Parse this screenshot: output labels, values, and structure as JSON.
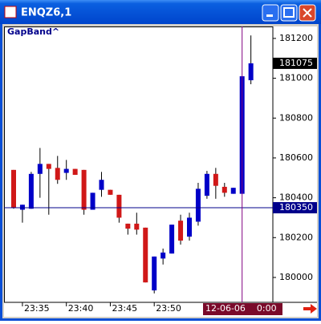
{
  "chart_data": {
    "type": "candlestick",
    "title": "ENQZ6,1",
    "indicator": "GapBand^",
    "categories": [
      null,
      "23:35",
      null,
      null,
      null,
      null,
      "23:40",
      null,
      null,
      null,
      null,
      "23:45",
      null,
      null,
      null,
      null,
      "23:50",
      null,
      null,
      null,
      null,
      null,
      null,
      null,
      null,
      null,
      null,
      null
    ],
    "series": [
      {
        "up_color": "#0000c8",
        "down_color": "#d01818",
        "open": [
          180540,
          180340,
          180345,
          180520,
          180570,
          180550,
          180525,
          180545,
          180540,
          180340,
          180440,
          180440,
          180415,
          180270,
          180270,
          180250,
          179935,
          180095,
          180120,
          180285,
          180205,
          180280,
          180410,
          180520,
          180455,
          180420,
          180420,
          180990
        ],
        "high": [
          180540,
          180365,
          180530,
          180650,
          180570,
          180610,
          180590,
          180545,
          180540,
          180425,
          180530,
          180440,
          180415,
          180270,
          180325,
          180250,
          180105,
          180145,
          180265,
          180315,
          180325,
          180475,
          180535,
          180550,
          180475,
          180450,
          181010,
          181215
        ],
        "low": [
          180345,
          180275,
          180345,
          180400,
          180315,
          180470,
          180490,
          180515,
          180315,
          180340,
          180405,
          180415,
          180275,
          180215,
          180215,
          179975,
          179920,
          180065,
          180120,
          180165,
          180185,
          180260,
          180395,
          180395,
          180405,
          180420,
          180420,
          180970
        ],
        "close": [
          180350,
          180365,
          180520,
          180570,
          180545,
          180490,
          180545,
          180515,
          180340,
          180425,
          180490,
          180415,
          180300,
          180245,
          180240,
          179975,
          180105,
          180125,
          180265,
          180185,
          180300,
          180445,
          180520,
          180460,
          180425,
          180450,
          181010,
          181075
        ]
      }
    ],
    "ylim": [
      179875,
      181260
    ],
    "yticks": [
      180000,
      180200,
      180400,
      180600,
      180800,
      181000,
      181200
    ],
    "reference_line": 180350,
    "reference_color": "#00008b",
    "last_price": 181075,
    "cursor_label": "12-06-06    0:00",
    "cursor_color": "#800080"
  }
}
